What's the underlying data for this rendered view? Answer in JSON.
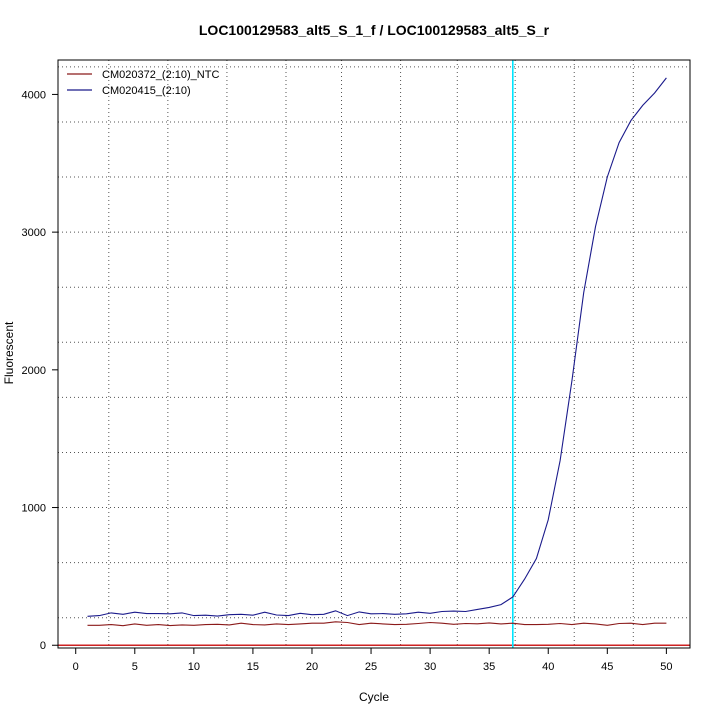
{
  "chart_data": {
    "type": "line",
    "title": "LOC100129583_alt5_S_1_f / LOC100129583_alt5_S_r",
    "xlabel": "Cycle",
    "ylabel": "Fluorescent",
    "xlim": [
      -1.5,
      52
    ],
    "ylim": [
      -20,
      4250
    ],
    "x_ticks": [
      0,
      5,
      10,
      15,
      20,
      25,
      30,
      35,
      40,
      45,
      50
    ],
    "y_ticks": [
      0,
      1000,
      2000,
      3000,
      4000
    ],
    "x_grid": [
      2.8,
      7.8,
      12.8,
      17.8,
      22.5,
      27.5,
      32.3,
      37.2,
      42.2,
      47.2
    ],
    "y_grid": [
      200,
      600,
      1000,
      1400,
      1800,
      2200,
      2600,
      3000,
      3400,
      3800,
      4200
    ],
    "grid": true,
    "threshold_x": 37.0,
    "threshold_color": "#00e5ff",
    "baseline_y": 0,
    "baseline_color": "#cc2222",
    "legend_position": "top-left",
    "series": [
      {
        "name": "CM020372_(2:10)_NTC",
        "color": "#8b1a1a",
        "x": [
          1,
          2,
          3,
          4,
          5,
          6,
          7,
          8,
          9,
          10,
          11,
          12,
          13,
          14,
          15,
          16,
          17,
          18,
          19,
          20,
          21,
          22,
          23,
          24,
          25,
          26,
          27,
          28,
          29,
          30,
          31,
          32,
          33,
          34,
          35,
          36,
          37,
          38,
          39,
          40,
          41,
          42,
          43,
          44,
          45,
          46,
          47,
          48,
          49,
          50
        ],
        "values": [
          145,
          145,
          150,
          142,
          155,
          145,
          150,
          143,
          148,
          145,
          150,
          152,
          148,
          160,
          150,
          148,
          155,
          150,
          155,
          160,
          160,
          170,
          165,
          150,
          160,
          155,
          150,
          152,
          158,
          165,
          160,
          152,
          158,
          156,
          162,
          155,
          160,
          150,
          150,
          152,
          158,
          150,
          160,
          155,
          145,
          158,
          160,
          150,
          160,
          160
        ]
      },
      {
        "name": "CM020415_(2:10)",
        "color": "#1a1a8b",
        "x": [
          1,
          2,
          3,
          4,
          5,
          6,
          7,
          8,
          9,
          10,
          11,
          12,
          13,
          14,
          15,
          16,
          17,
          18,
          19,
          20,
          21,
          22,
          23,
          24,
          25,
          26,
          27,
          28,
          29,
          30,
          31,
          32,
          33,
          34,
          35,
          36,
          37,
          38,
          39,
          40,
          41,
          42,
          43,
          44,
          45,
          46,
          47,
          48,
          49,
          50
        ],
        "values": [
          210,
          215,
          235,
          225,
          240,
          230,
          230,
          228,
          235,
          215,
          218,
          212,
          222,
          225,
          218,
          240,
          220,
          215,
          232,
          222,
          225,
          250,
          215,
          242,
          228,
          230,
          225,
          228,
          240,
          232,
          245,
          248,
          245,
          260,
          275,
          295,
          350,
          480,
          630,
          910,
          1340,
          1920,
          2560,
          3040,
          3400,
          3650,
          3810,
          3920,
          4010,
          4120
        ]
      }
    ]
  }
}
